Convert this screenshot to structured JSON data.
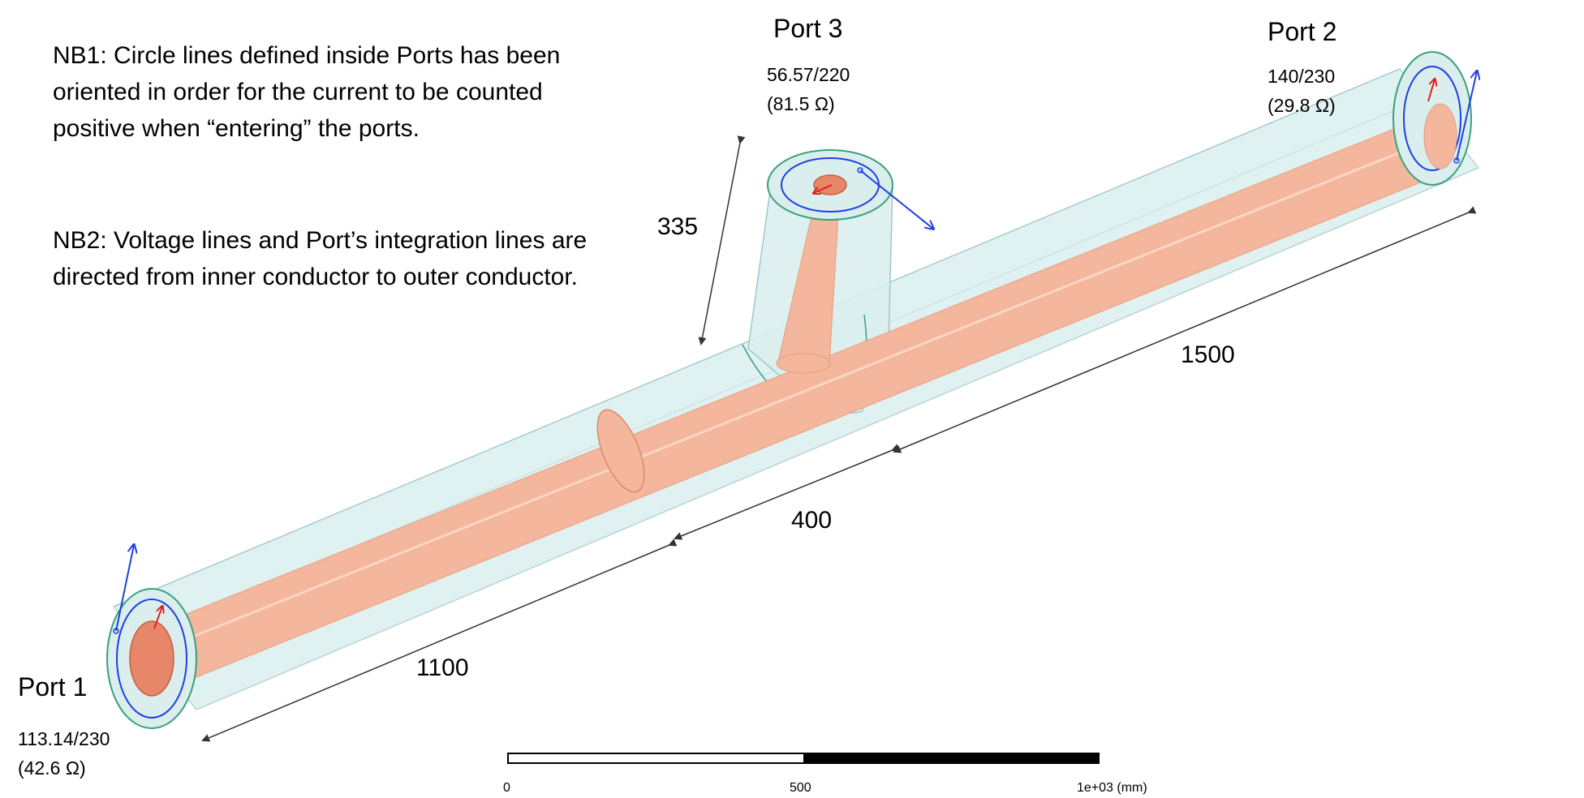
{
  "notes": {
    "nb1": "NB1: Circle lines defined inside Ports has been oriented in order for the current to be counted positive when “entering” the ports.",
    "nb2": "NB2: Voltage lines and Port’s integration lines are directed from inner conductor to outer conductor."
  },
  "ports": [
    {
      "title": "Port 1",
      "spec": "113.14/230\n(42.6 Ω)"
    },
    {
      "title": "Port 2",
      "spec": "140/230\n(29.8 Ω)"
    },
    {
      "title": "Port 3",
      "spec": "56.57/220\n(81.5 Ω)"
    }
  ],
  "dimensions": {
    "d1100": "1100",
    "d400": "400",
    "d1500": "1500",
    "d335": "335"
  },
  "scale": {
    "labels": [
      "0",
      "500",
      "1e+03 (mm)"
    ]
  },
  "colors": {
    "outer_conductor": "#dbeeee",
    "inner_conductor": "#f4b69c",
    "port_face_inner": "#e8866a",
    "circle_line": "#1f3fe0",
    "voltage_line": "#e02020",
    "dimension_arrow": "#333333"
  }
}
